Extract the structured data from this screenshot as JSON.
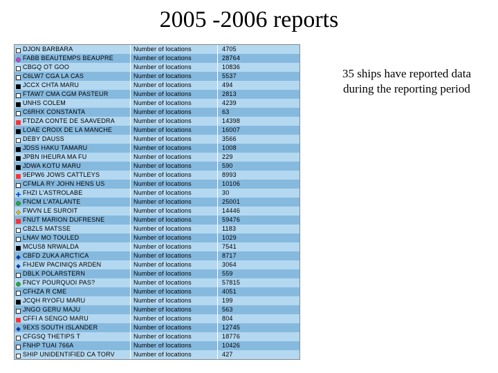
{
  "title": "2005 -2006 reports",
  "caption_line1": "35 ships have reported data",
  "caption_line2": "during the reporting period",
  "label_text": "Number of locations",
  "colors": {
    "row_even": "#b4d8f0",
    "row_odd": "#86b9de",
    "text": "#000000",
    "background": "#ffffff"
  },
  "ships": [
    {
      "marker_shape": "square",
      "marker_color": "#ffffff",
      "name": "DJON  BARBARA",
      "count": "4705"
    },
    {
      "marker_shape": "circle",
      "marker_color": "#d040d0",
      "name": "FABB  BEAUTEMPS BEAUPRE",
      "count": "28764"
    },
    {
      "marker_shape": "square",
      "marker_color": "#ffffff",
      "name": "CBGQ  OT GOO",
      "count": "10836"
    },
    {
      "marker_shape": "square",
      "marker_color": "#ffffff",
      "name": "C6LW7  CGA LA CAS",
      "count": "5537"
    },
    {
      "marker_shape": "square",
      "marker_color": "#000000",
      "name": "JCCX  CHTA MARU",
      "count": "494"
    },
    {
      "marker_shape": "square",
      "marker_color": "#ffffff",
      "name": "FTAW7  CMA CGM PASTEUR",
      "count": "2813"
    },
    {
      "marker_shape": "square",
      "marker_color": "#000000",
      "name": "UNHS  COLEM",
      "count": "4239"
    },
    {
      "marker_shape": "square",
      "marker_color": "#ffffff",
      "name": "C6RHX  CONSTANTA",
      "count": "63"
    },
    {
      "marker_shape": "square",
      "marker_color": "#ff3030",
      "name": "FTDZA  CONTE DE SAAVEDRA",
      "count": "14398"
    },
    {
      "marker_shape": "square",
      "marker_color": "#000000",
      "name": "LOAE  CROIX DE LA MANCHE",
      "count": "16007"
    },
    {
      "marker_shape": "square",
      "marker_color": "#ffffff",
      "name": "DEBY  DAUSS",
      "count": "3566"
    },
    {
      "marker_shape": "square",
      "marker_color": "#000000",
      "name": "JDSS  HAKU TAMARU",
      "count": "1008"
    },
    {
      "marker_shape": "square",
      "marker_color": "#000000",
      "name": "JPBN  IHEURA MA FU",
      "count": "229"
    },
    {
      "marker_shape": "square",
      "marker_color": "#000000",
      "name": "JDWA  KOTU MARU",
      "count": "590"
    },
    {
      "marker_shape": "square",
      "marker_color": "#ff3030",
      "name": "9EPW6  JOWS CATTLEYS",
      "count": "8993"
    },
    {
      "marker_shape": "square",
      "marker_color": "#ffffff",
      "name": "CFMLA  RY JOHN HENS US",
      "count": "10106"
    },
    {
      "marker_shape": "cross",
      "marker_color": "#0040d0",
      "name": "FHZI  L'ASTROLABE",
      "count": "30"
    },
    {
      "marker_shape": "circle",
      "marker_color": "#20b030",
      "name": "FNCM  L'ATALANTE",
      "count": "25001"
    },
    {
      "marker_shape": "diamond",
      "marker_color": "#f0c000",
      "name": "FWVN  LE SUROIT",
      "count": "14446"
    },
    {
      "marker_shape": "square",
      "marker_color": "#ff3030",
      "name": "FNUT  MARION DUFRESNE",
      "count": "59476"
    },
    {
      "marker_shape": "square",
      "marker_color": "#ffffff",
      "name": "CBZL5  MATSSE",
      "count": "1183"
    },
    {
      "marker_shape": "square",
      "marker_color": "#ffffff",
      "name": "LNAV  MO TOULED",
      "count": "1029"
    },
    {
      "marker_shape": "square",
      "marker_color": "#000000",
      "name": "MCUS8  NRWALDA",
      "count": "7541"
    },
    {
      "marker_shape": "diamond",
      "marker_color": "#0040d0",
      "name": "CBFD  ZUKA ARCTICA",
      "count": "8717"
    },
    {
      "marker_shape": "diamond",
      "marker_color": "#0040d0",
      "name": "FHJEW  PACINIQS  ARDEN",
      "count": "3064"
    },
    {
      "marker_shape": "square",
      "marker_color": "#ffffff",
      "name": "DBLK  POLARSTERN",
      "count": "559"
    },
    {
      "marker_shape": "circle",
      "marker_color": "#20b030",
      "name": "FNCY  POURQUOI PAS?",
      "count": "57815"
    },
    {
      "marker_shape": "square",
      "marker_color": "#ffffff",
      "name": "CFHZA  R CME",
      "count": "4051"
    },
    {
      "marker_shape": "square",
      "marker_color": "#000000",
      "name": "JCQH  RYOFU MARU",
      "count": "199"
    },
    {
      "marker_shape": "square",
      "marker_color": "#ffffff",
      "name": "JNGO  GERU MAJU",
      "count": "563"
    },
    {
      "marker_shape": "square",
      "marker_color": "#ff3030",
      "name": "CFFI  A SENGO MARU",
      "count": "804"
    },
    {
      "marker_shape": "diamond",
      "marker_color": "#0040d0",
      "name": "9EXS  SOUTH ISLANDER",
      "count": "12745"
    },
    {
      "marker_shape": "square",
      "marker_color": "#ffffff",
      "name": "CFGSQ  THETIPS T",
      "count": "18776"
    },
    {
      "marker_shape": "square",
      "marker_color": "#ffffff",
      "name": "FNHP  TUAI 766A",
      "count": "10426"
    },
    {
      "marker_shape": "square",
      "marker_color": "#ffffff",
      "name": "SHIP  UNIDENTIFIED CA TORV",
      "count": "427"
    }
  ]
}
